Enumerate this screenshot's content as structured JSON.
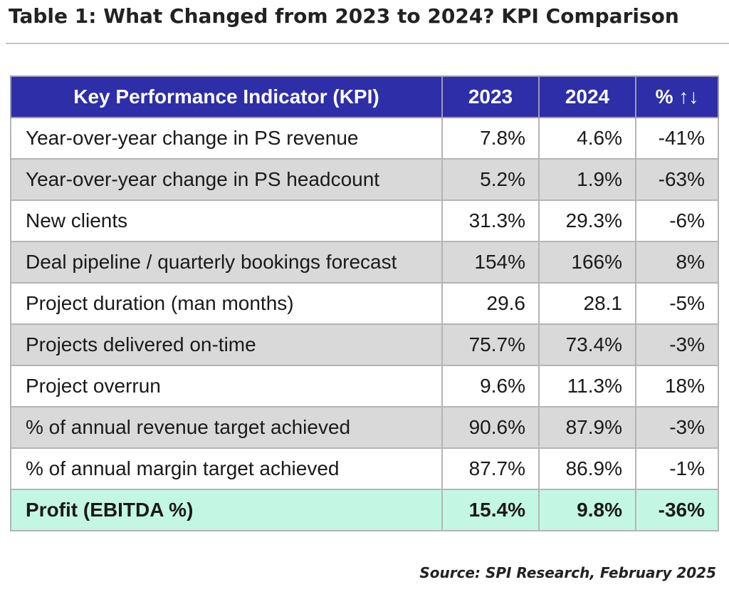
{
  "title": "Table 1:  What Changed from 2023 to 2024? KPI Comparison",
  "table": {
    "headers": [
      "Key Performance Indicator (KPI)",
      "2023",
      "2024",
      "% ↑↓"
    ],
    "rows": [
      [
        "Year-over-year change in PS revenue",
        "7.8%",
        "4.6%",
        "-41%"
      ],
      [
        "Year-over-year change in PS headcount",
        "5.2%",
        "1.9%",
        "-63%"
      ],
      [
        "New clients",
        "31.3%",
        "29.3%",
        "-6%"
      ],
      [
        "Deal pipeline / quarterly bookings forecast",
        "154%",
        "166%",
        "8%"
      ],
      [
        "Project duration (man months)",
        "29.6",
        "28.1",
        "-5%"
      ],
      [
        "Projects delivered on-time",
        "75.7%",
        "73.4%",
        "-3%"
      ],
      [
        "Project overrun",
        "9.6%",
        "11.3%",
        "18%"
      ],
      [
        "% of annual revenue target achieved",
        "90.6%",
        "87.9%",
        "-3%"
      ],
      [
        "% of annual margin target achieved",
        "87.7%",
        "86.9%",
        "-1%"
      ],
      [
        "Profit (EBITDA %)",
        "15.4%",
        "9.8%",
        "-36%"
      ]
    ]
  },
  "source": "Source: SPI Research, February 2025",
  "colors": {
    "header_bg": "#2e2ea8",
    "stripe_gray": "#d9d9d9",
    "total_row_bg": "#c4f7e3"
  }
}
